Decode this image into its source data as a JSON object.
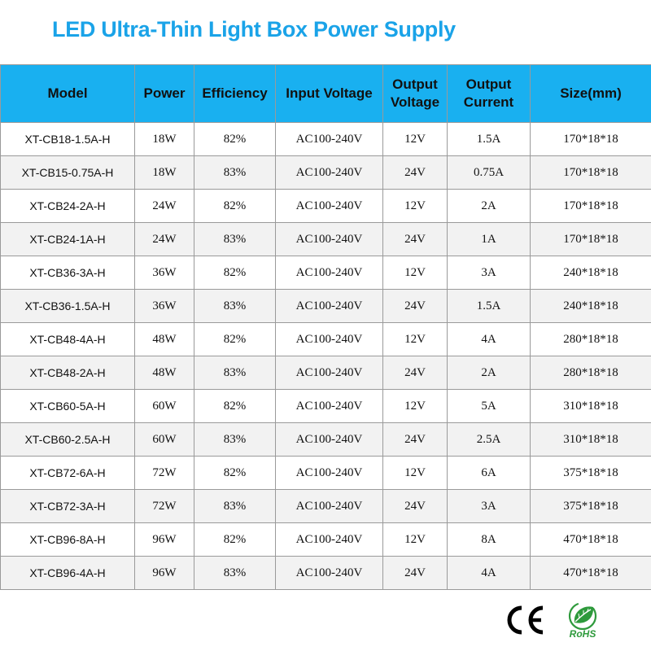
{
  "title": "LED Ultra-Thin Light Box Power Supply",
  "colors": {
    "title": "#1aa3e8",
    "header_bg": "#19b0f0",
    "row_stripe": "#f2f2f2",
    "rohs_green": "#2e9a3c"
  },
  "table": {
    "columns": [
      "Model",
      "Power",
      "Efficiency",
      "Input Voltage",
      "Output Voltage",
      "Output Current",
      "Size(mm)"
    ],
    "rows": [
      [
        "XT-CB18-1.5A-H",
        "18W",
        "82%",
        "AC100-240V",
        "12V",
        "1.5A",
        "170*18*18"
      ],
      [
        "XT-CB15-0.75A-H",
        "18W",
        "83%",
        "AC100-240V",
        "24V",
        "0.75A",
        "170*18*18"
      ],
      [
        "XT-CB24-2A-H",
        "24W",
        "82%",
        "AC100-240V",
        "12V",
        "2A",
        "170*18*18"
      ],
      [
        "XT-CB24-1A-H",
        "24W",
        "83%",
        "AC100-240V",
        "24V",
        "1A",
        "170*18*18"
      ],
      [
        "XT-CB36-3A-H",
        "36W",
        "82%",
        "AC100-240V",
        "12V",
        "3A",
        "240*18*18"
      ],
      [
        "XT-CB36-1.5A-H",
        "36W",
        "83%",
        "AC100-240V",
        "24V",
        "1.5A",
        "240*18*18"
      ],
      [
        "XT-CB48-4A-H",
        "48W",
        "82%",
        "AC100-240V",
        "12V",
        "4A",
        "280*18*18"
      ],
      [
        "XT-CB48-2A-H",
        "48W",
        "83%",
        "AC100-240V",
        "24V",
        "2A",
        "280*18*18"
      ],
      [
        "XT-CB60-5A-H",
        "60W",
        "82%",
        "AC100-240V",
        "12V",
        "5A",
        "310*18*18"
      ],
      [
        "XT-CB60-2.5A-H",
        "60W",
        "83%",
        "AC100-240V",
        "24V",
        "2.5A",
        "310*18*18"
      ],
      [
        "XT-CB72-6A-H",
        "72W",
        "82%",
        "AC100-240V",
        "12V",
        "6A",
        "375*18*18"
      ],
      [
        "XT-CB72-3A-H",
        "72W",
        "83%",
        "AC100-240V",
        "24V",
        "3A",
        "375*18*18"
      ],
      [
        "XT-CB96-8A-H",
        "96W",
        "82%",
        "AC100-240V",
        "12V",
        "8A",
        "470*18*18"
      ],
      [
        "XT-CB96-4A-H",
        "96W",
        "83%",
        "AC100-240V",
        "24V",
        "4A",
        "470*18*18"
      ]
    ]
  },
  "certifications": {
    "ce": {
      "icon": "ce-mark-icon",
      "text": "CE"
    },
    "rohs": {
      "icon": "rohs-leaf-icon",
      "text": "RoHS"
    }
  }
}
